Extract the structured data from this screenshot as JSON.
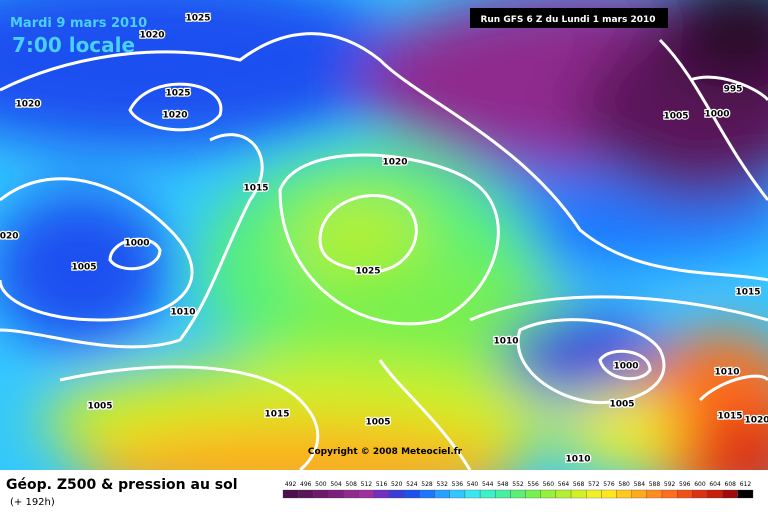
{
  "header": {
    "date": "Mardi 9 mars 2010",
    "time": "7:00 locale",
    "run": "Run GFS 6 Z du Lundi 1 mars 2010"
  },
  "copyright": "Copyright © 2008 Meteociel.fr",
  "footer": {
    "title": "Géop. Z500 & pression au sol",
    "lead": "(+ 192h)"
  },
  "legend": {
    "labels": [
      "492",
      "496",
      "500",
      "504",
      "508",
      "512",
      "516",
      "520",
      "524",
      "528",
      "532",
      "536",
      "540",
      "544",
      "548",
      "552",
      "556",
      "560",
      "564",
      "568",
      "572",
      "576",
      "580",
      "584",
      "588",
      "592",
      "596",
      "600",
      "604",
      "608",
      "612"
    ],
    "colors": [
      "#4b0f4b",
      "#5a145a",
      "#6b1a6b",
      "#7d1f7d",
      "#8f2a8f",
      "#a030a0",
      "#7030c0",
      "#3c3cd8",
      "#1e50f0",
      "#1e78ff",
      "#28a0ff",
      "#32c8ff",
      "#3ce6f0",
      "#3cf0c8",
      "#46f0a0",
      "#5af078",
      "#78f050",
      "#96f03c",
      "#b4f032",
      "#d2f028",
      "#f0f028",
      "#ffe61e",
      "#ffc81e",
      "#ffaa1e",
      "#ff8c1e",
      "#ff6e1e",
      "#f05014",
      "#dc3214",
      "#c81e0a",
      "#a00a0a",
      "#000000"
    ]
  },
  "isobars": [
    "1025",
    "1020",
    "1020",
    "1025",
    "1020",
    "1020",
    "1015",
    "1020",
    "1000",
    "1005",
    "1010",
    "1025",
    "995",
    "1005",
    "1000",
    "1015",
    "1010",
    "1000",
    "1010",
    "1005",
    "1015",
    "1020",
    "1005",
    "1015",
    "1005",
    "1010"
  ]
}
